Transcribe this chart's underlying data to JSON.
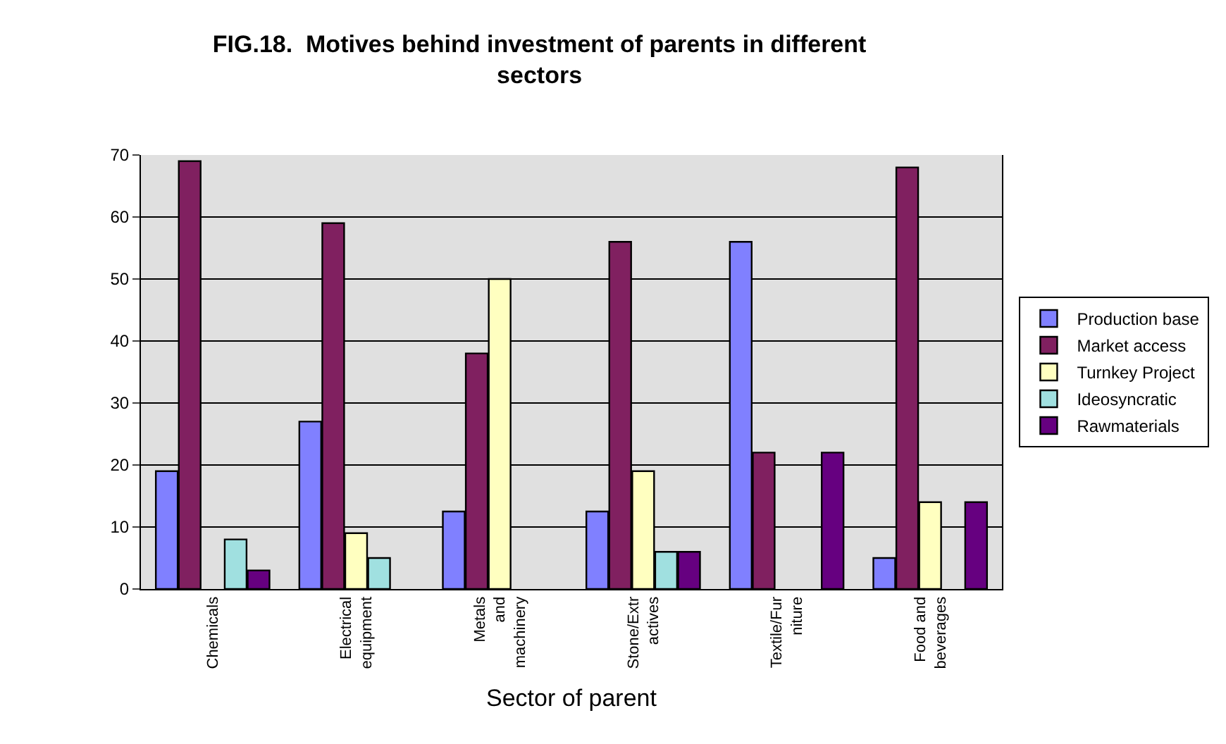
{
  "chart_data": {
    "type": "bar",
    "title": "FIG.18.  Motives behind investment of parents in different\nsectors",
    "xlabel": "Sector of parent",
    "categories": [
      "Chemicals",
      "Electrical\nequipment",
      "Metals\nand\nmachinery",
      "Stone/Extr\nactives",
      "Textile/Fur\nniture",
      "Food and\nbeverages"
    ],
    "series": [
      {
        "name": "Production base",
        "color": "#8080ff",
        "values": [
          19,
          27,
          12.5,
          12.5,
          56,
          5
        ]
      },
      {
        "name": "Market access",
        "color": "#802060",
        "values": [
          69,
          59,
          38,
          56,
          22,
          68
        ]
      },
      {
        "name": "Turnkey Project",
        "color": "#ffffc0",
        "values": [
          null,
          9,
          50,
          19,
          null,
          14
        ]
      },
      {
        "name": "Ideosyncratic",
        "color": "#a0e0e0",
        "values": [
          8,
          5,
          null,
          6,
          null,
          null
        ]
      },
      {
        "name": "Rawmaterials",
        "color": "#660080",
        "values": [
          3,
          null,
          null,
          6,
          22,
          14
        ]
      }
    ],
    "ylim": [
      0,
      70
    ],
    "yticks": [
      0,
      10,
      20,
      30,
      40,
      50,
      60,
      70
    ],
    "grid": "y",
    "legend": "right"
  }
}
